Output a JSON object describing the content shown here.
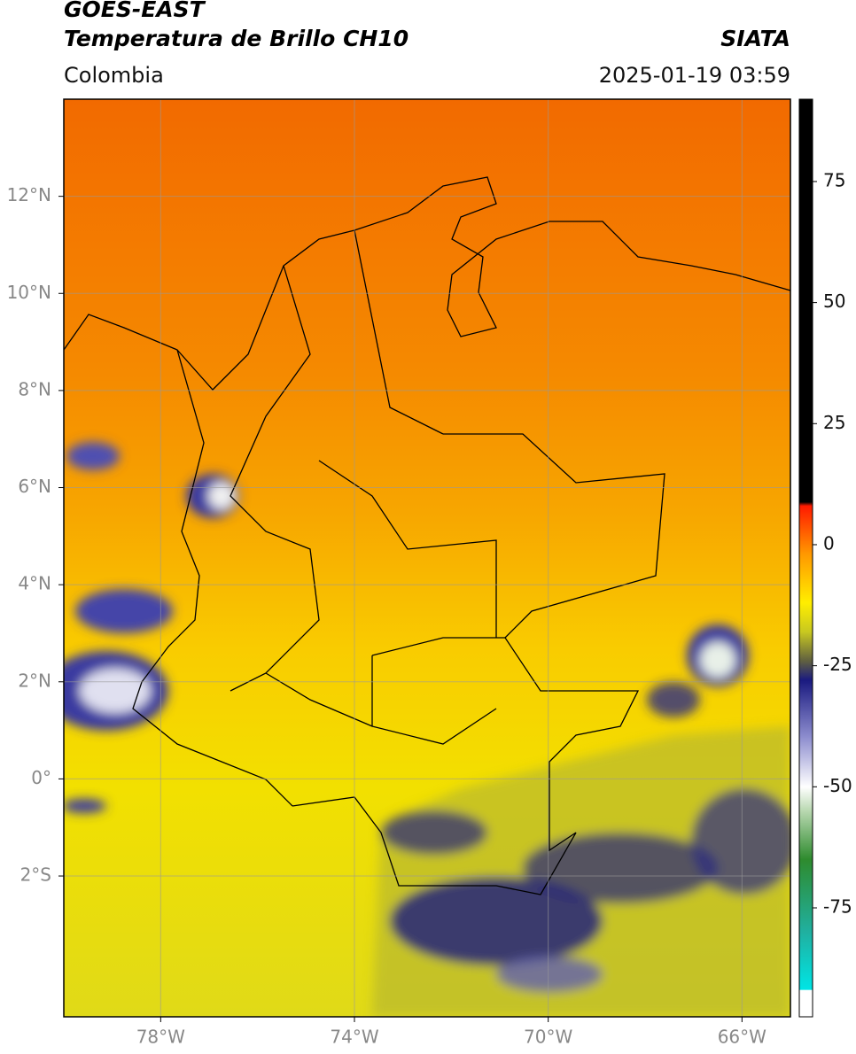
{
  "header": {
    "title": "GOES-EAST",
    "subtitle": "Temperatura de Brillo CH10",
    "source": "SIATA",
    "region": "Colombia",
    "timestamp": "2025-01-19 03:59"
  },
  "map": {
    "xlim": [
      -80,
      -65
    ],
    "ylim": [
      -4.9,
      14
    ],
    "xticks": [
      {
        "value": -78,
        "label": "78°W"
      },
      {
        "value": -74,
        "label": "74°W"
      },
      {
        "value": -70,
        "label": "70°W"
      },
      {
        "value": -66,
        "label": "66°W"
      }
    ],
    "yticks": [
      {
        "value": 12,
        "label": "12°N"
      },
      {
        "value": 10,
        "label": "10°N"
      },
      {
        "value": 8,
        "label": "8°N"
      },
      {
        "value": 6,
        "label": "6°N"
      },
      {
        "value": 4,
        "label": "4°N"
      },
      {
        "value": 2,
        "label": "2°N"
      },
      {
        "value": 0,
        "label": "0°"
      },
      {
        "value": -2,
        "label": "2°S"
      }
    ],
    "grid": true
  },
  "colorbar": {
    "lim": [
      -97.5,
      92
    ],
    "ticks": [
      75,
      50,
      25,
      0,
      -25,
      -50,
      -75
    ],
    "stops": [
      {
        "value": -97.5,
        "color": "#ffffff"
      },
      {
        "value": -92,
        "color": "#ffffff"
      },
      {
        "value": -91.9,
        "color": "#00e5e5"
      },
      {
        "value": -80,
        "color": "#20b0a0"
      },
      {
        "value": -65,
        "color": "#2e8b2e"
      },
      {
        "value": -55,
        "color": "#b8d8b0"
      },
      {
        "value": -50,
        "color": "#ffffff"
      },
      {
        "value": -40,
        "color": "#9090d0"
      },
      {
        "value": -28,
        "color": "#1a1a80"
      },
      {
        "value": -24,
        "color": "#606040"
      },
      {
        "value": -18,
        "color": "#c8c820"
      },
      {
        "value": -12,
        "color": "#ffee00"
      },
      {
        "value": -2,
        "color": "#ff9900"
      },
      {
        "value": 8,
        "color": "#ff1a00"
      },
      {
        "value": 8.8,
        "color": "#000000"
      },
      {
        "value": 92,
        "color": "#000000"
      }
    ]
  }
}
